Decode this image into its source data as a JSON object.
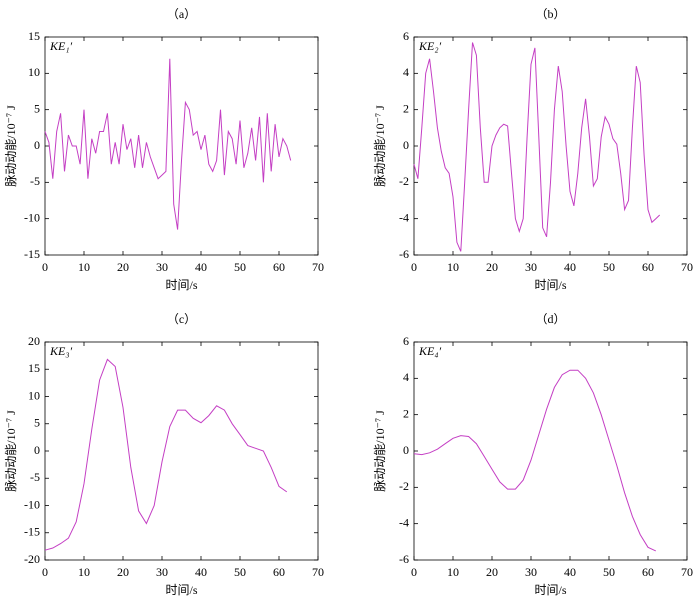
{
  "chart_data": [
    {
      "type": "line",
      "title": "（a）",
      "annotation": "KE₁′",
      "xlabel": "时间/s",
      "ylabel": "脉动动能/10⁻⁷ J",
      "color": "#c43fc4",
      "x": [
        0,
        1,
        2,
        3,
        4,
        5,
        6,
        7,
        8,
        9,
        10,
        11,
        12,
        13,
        14,
        15,
        16,
        17,
        18,
        19,
        20,
        21,
        22,
        23,
        24,
        25,
        26,
        27,
        28,
        29,
        30,
        31,
        32,
        33,
        34,
        35,
        36,
        37,
        38,
        39,
        40,
        41,
        42,
        43,
        44,
        45,
        46,
        47,
        48,
        49,
        50,
        51,
        52,
        53,
        54,
        55,
        56,
        57,
        58,
        59,
        60,
        61,
        62,
        63
      ],
      "values": [
        2,
        0.5,
        -4.5,
        2,
        4.5,
        -3.5,
        1.5,
        0,
        0,
        -2.5,
        5,
        -4.5,
        1,
        -1,
        2,
        2,
        4.5,
        -2.5,
        0.5,
        -2.5,
        3,
        -0.5,
        1,
        -3,
        1.5,
        -3,
        0.5,
        -1.5,
        -3,
        -4.5,
        -4,
        -3.5,
        12,
        -8,
        -11.5,
        -2,
        6,
        5,
        1.5,
        2,
        -0.5,
        1.5,
        -2.5,
        -3.5,
        -2,
        5,
        -4,
        2,
        1,
        -2.5,
        3.5,
        -3,
        -1,
        2.5,
        -2,
        4,
        -5,
        4.5,
        -3.5,
        3,
        -1.5,
        1,
        0,
        -2
      ],
      "xlim": [
        0,
        70
      ],
      "xticks": [
        0,
        10,
        20,
        30,
        40,
        50,
        60,
        70
      ],
      "ylim": [
        -15,
        15
      ],
      "yticks": [
        -15,
        -10,
        -5,
        0,
        5,
        10,
        15
      ]
    },
    {
      "type": "line",
      "title": "（b）",
      "annotation": "KE₂′",
      "xlabel": "时间/s",
      "ylabel": "脉动动能/10⁻⁷ J",
      "color": "#c43fc4",
      "x": [
        0,
        1,
        2,
        3,
        4,
        5,
        6,
        7,
        8,
        9,
        10,
        11,
        12,
        13,
        14,
        15,
        16,
        17,
        18,
        19,
        20,
        21,
        22,
        23,
        24,
        25,
        26,
        27,
        28,
        29,
        30,
        31,
        32,
        33,
        34,
        35,
        36,
        37,
        38,
        39,
        40,
        41,
        42,
        43,
        44,
        45,
        46,
        47,
        48,
        49,
        50,
        51,
        52,
        53,
        54,
        55,
        56,
        57,
        58,
        59,
        60,
        61,
        62,
        63
      ],
      "values": [
        -1,
        -1.8,
        1,
        4,
        4.8,
        3,
        1,
        -0.3,
        -1.2,
        -1.5,
        -2.8,
        -5.3,
        -5.8,
        -2,
        2,
        5.7,
        5,
        1,
        -2,
        -2,
        0,
        0.6,
        1,
        1.2,
        1.1,
        -1.5,
        -4,
        -4.7,
        -4,
        0.5,
        4.5,
        5.4,
        0.5,
        -4.5,
        -5,
        -2,
        2,
        4.4,
        3,
        0,
        -2.5,
        -3.3,
        -1.5,
        1,
        2.6,
        0.5,
        -2.2,
        -1.8,
        0.5,
        1.6,
        1.2,
        0.4,
        0.1,
        -1.5,
        -3.5,
        -3,
        1,
        4.4,
        3.5,
        -0.5,
        -3.5,
        -4.2,
        -4,
        -3.8
      ],
      "xlim": [
        0,
        70
      ],
      "xticks": [
        0,
        10,
        20,
        30,
        40,
        50,
        60,
        70
      ],
      "ylim": [
        -6,
        6
      ],
      "yticks": [
        -6,
        -4,
        -2,
        0,
        2,
        4,
        6
      ]
    },
    {
      "type": "line",
      "title": "（c）",
      "annotation": "KE₃′",
      "xlabel": "时间/s",
      "ylabel": "脉动动能/10⁻⁷ J",
      "color": "#c43fc4",
      "x": [
        0,
        2,
        4,
        6,
        8,
        10,
        12,
        14,
        16,
        18,
        20,
        22,
        24,
        26,
        28,
        30,
        32,
        34,
        36,
        38,
        40,
        42,
        44,
        46,
        48,
        50,
        52,
        54,
        56,
        58,
        60,
        62
      ],
      "values": [
        -18.2,
        -17.8,
        -17,
        -16,
        -13,
        -6,
        4,
        13,
        16.8,
        15.5,
        8,
        -3,
        -11,
        -13.3,
        -10,
        -2,
        4.5,
        7.5,
        7.5,
        6,
        5.2,
        6.5,
        8.3,
        7.5,
        5,
        3,
        1,
        0.5,
        0,
        -3,
        -6.5,
        -7.5
      ],
      "xlim": [
        0,
        70
      ],
      "xticks": [
        0,
        10,
        20,
        30,
        40,
        50,
        60,
        70
      ],
      "ylim": [
        -20,
        20
      ],
      "yticks": [
        -20,
        -15,
        -10,
        -5,
        0,
        5,
        10,
        15,
        20
      ]
    },
    {
      "type": "line",
      "title": "（d）",
      "annotation": "KE₄′",
      "xlabel": "时间/s",
      "ylabel": "脉动动能/10⁻⁷ J",
      "color": "#c43fc4",
      "x": [
        0,
        2,
        4,
        6,
        8,
        10,
        12,
        14,
        16,
        18,
        20,
        22,
        24,
        26,
        28,
        30,
        32,
        34,
        36,
        38,
        40,
        42,
        44,
        46,
        48,
        50,
        52,
        54,
        56,
        58,
        60,
        62
      ],
      "values": [
        -0.15,
        -0.2,
        -0.1,
        0.1,
        0.4,
        0.7,
        0.85,
        0.8,
        0.4,
        -0.3,
        -1,
        -1.7,
        -2.1,
        -2.1,
        -1.6,
        -0.5,
        0.9,
        2.3,
        3.5,
        4.2,
        4.45,
        4.45,
        4,
        3.2,
        2,
        0.6,
        -0.8,
        -2.3,
        -3.6,
        -4.6,
        -5.3,
        -5.5
      ],
      "xlim": [
        0,
        70
      ],
      "xticks": [
        0,
        10,
        20,
        30,
        40,
        50,
        60,
        70
      ],
      "ylim": [
        -6,
        6
      ],
      "yticks": [
        -6,
        -4,
        -2,
        0,
        2,
        4,
        6
      ]
    }
  ]
}
